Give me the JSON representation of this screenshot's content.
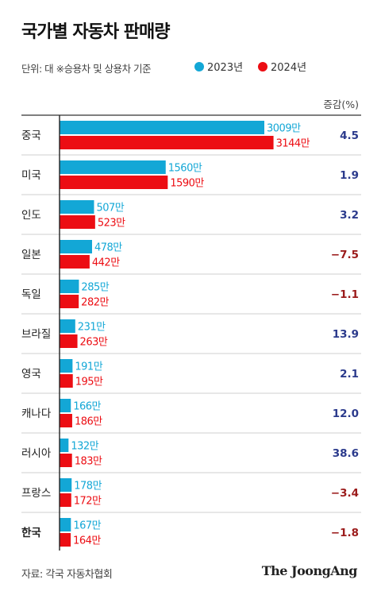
{
  "header": {
    "title": "국가별 자동차 판매량",
    "subtitle": "단위: 대  ※승용차 및 상용차 기준"
  },
  "legend": [
    {
      "label": "2023년",
      "color": "#13a7d6"
    },
    {
      "label": "2024년",
      "color": "#ec0d13"
    }
  ],
  "footer": {
    "source": "자료: 각국 자동차협회",
    "brand": "The JoongAng"
  },
  "chart_data": {
    "type": "bar",
    "orientation": "horizontal",
    "change_header": "증감(%)",
    "value_suffix": "만",
    "categories": [
      "중국",
      "미국",
      "인도",
      "일본",
      "독일",
      "브라질",
      "영국",
      "캐나다",
      "러시아",
      "프랑스",
      "한국"
    ],
    "series": [
      {
        "name": "2023년",
        "color": "#13a7d6",
        "values": [
          3009,
          1560,
          507,
          478,
          285,
          231,
          191,
          166,
          132,
          178,
          167
        ]
      },
      {
        "name": "2024년",
        "color": "#ec0d13",
        "values": [
          3144,
          1590,
          523,
          442,
          282,
          263,
          195,
          186,
          183,
          172,
          164
        ]
      }
    ],
    "change": [
      "4.5",
      "1.9",
      "3.2",
      "−7.5",
      "−1.1",
      "13.9",
      "2.1",
      "12.0",
      "38.6",
      "−3.4",
      "−1.8"
    ],
    "change_colors": {
      "positive": "#2b3a8c",
      "negative": "#9b1b1b"
    },
    "highlight_category": "한국"
  }
}
